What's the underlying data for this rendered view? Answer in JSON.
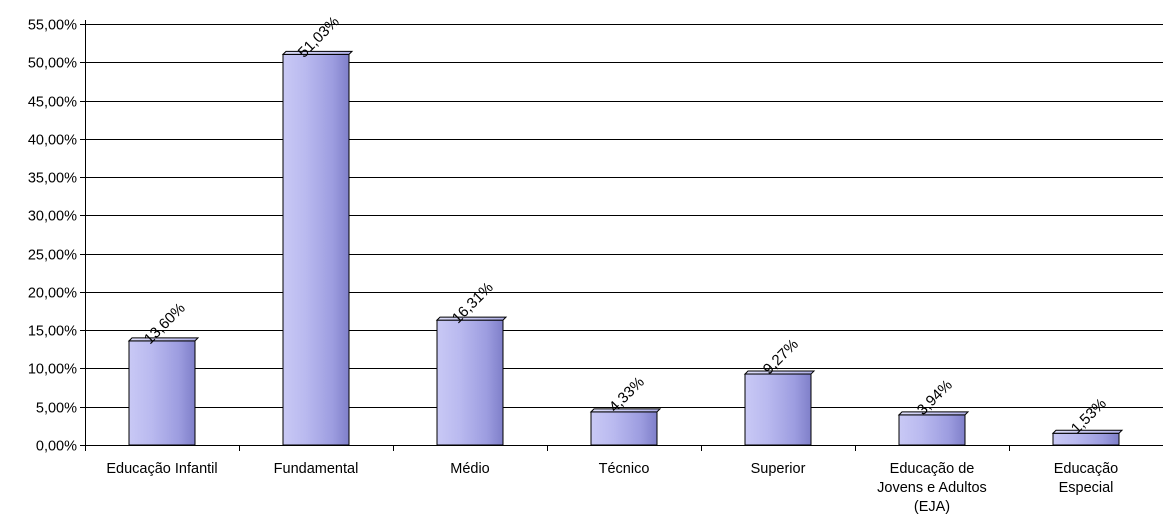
{
  "chart_data": {
    "type": "bar",
    "categories": [
      [
        "Educação Infantil"
      ],
      [
        "Fundamental"
      ],
      [
        "Médio"
      ],
      [
        "Técnico"
      ],
      [
        "Superior"
      ],
      [
        "Educação de",
        "Jovens e Adultos",
        "(EJA)"
      ],
      [
        "Educação",
        "Especial"
      ]
    ],
    "values": [
      13.6,
      51.03,
      16.31,
      4.33,
      9.27,
      3.94,
      1.53
    ],
    "data_labels": [
      "13,60%",
      "51,03%",
      "16,31%",
      "4,33%",
      "9,27%",
      "3,94%",
      "1,53%"
    ],
    "y_ticks": [
      "0,00%",
      "5,00%",
      "10,00%",
      "15,00%",
      "20,00%",
      "25,00%",
      "30,00%",
      "35,00%",
      "40,00%",
      "45,00%",
      "50,00%",
      "55,00%"
    ],
    "ylim": [
      0,
      55
    ],
    "grid": true,
    "style": "3d-cylinder-like",
    "bar_color": "#b3b3f0",
    "bar_edge": "#000000"
  }
}
